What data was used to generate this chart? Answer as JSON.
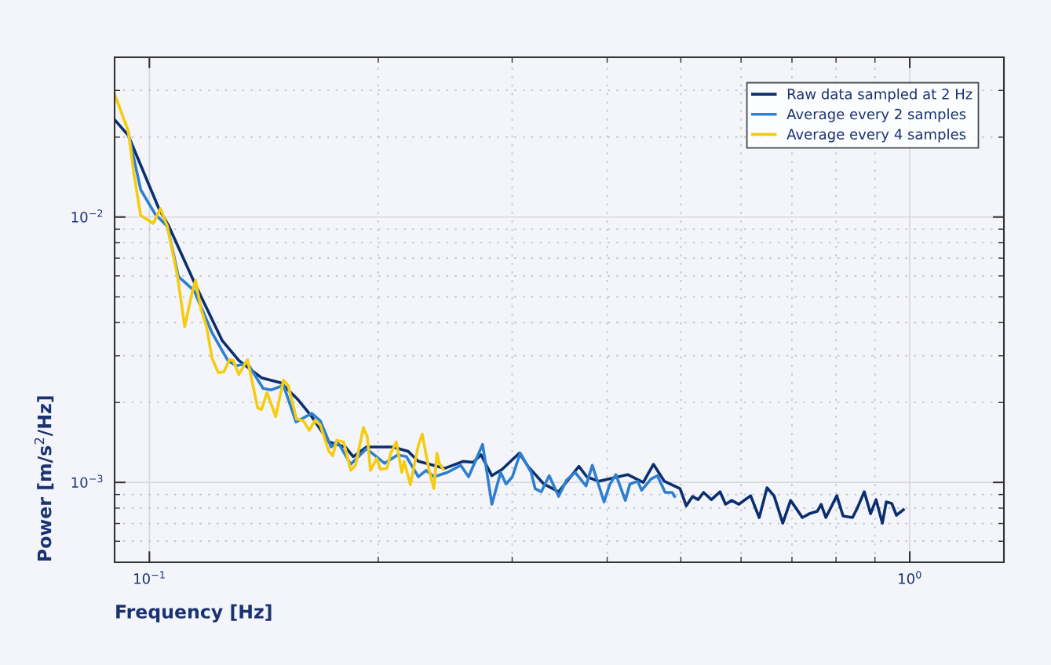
{
  "chart_data": {
    "type": "line",
    "xlabel": "Frequency [Hz]",
    "ylabel": "Power [m/s$^{2}$/Hz]",
    "log": "xy",
    "grid": true,
    "legend": "top right",
    "line_style": "solid",
    "xlim": [
      0.09,
      1.33
    ],
    "ylim": [
      0.0005,
      0.04
    ],
    "xticks": [
      {
        "value": 0.1,
        "label": "10$^{−1}$"
      },
      {
        "value": 1,
        "label": "10$^{0}$"
      }
    ],
    "yticks": [
      {
        "value": 0.001,
        "label": "10$^{−3}$"
      },
      {
        "value": 0.01,
        "label": "10$^{−2}$"
      }
    ],
    "series": [
      {
        "name": "Raw data sampled at 2 Hz",
        "color": "#0b2f6e",
        "x": [
          0.0901,
          0.0938,
          0.1029,
          0.1061,
          0.1145,
          0.1247,
          0.1311,
          0.1404,
          0.149,
          0.1566,
          0.1635,
          0.1722,
          0.181,
          0.1854,
          0.193,
          0.2087,
          0.2189,
          0.2258,
          0.2447,
          0.2585,
          0.2666,
          0.273,
          0.2821,
          0.291,
          0.3066,
          0.3147,
          0.3302,
          0.3453,
          0.3672,
          0.3761,
          0.3896,
          0.4256,
          0.4462,
          0.4602,
          0.4756,
          0.4988,
          0.5083,
          0.5181,
          0.5268,
          0.5356,
          0.5485,
          0.563,
          0.5725,
          0.5834,
          0.5961,
          0.6176,
          0.6339,
          0.6491,
          0.663,
          0.6808,
          0.6971,
          0.7088,
          0.7224,
          0.7379,
          0.7557,
          0.7647,
          0.7757,
          0.8018,
          0.8172,
          0.8409,
          0.853,
          0.8714,
          0.8882,
          0.9031,
          0.9204,
          0.9314,
          0.947,
          0.9605,
          0.981
        ],
        "values": [
          0.0232,
          0.0203,
          0.01077,
          0.00922,
          0.00569,
          0.00342,
          0.00288,
          0.00248,
          0.00237,
          0.00206,
          0.00177,
          0.00142,
          0.00136,
          0.00125,
          0.00136,
          0.00136,
          0.00131,
          0.0012,
          0.00113,
          0.0012,
          0.00119,
          0.00127,
          0.00106,
          0.00112,
          0.00129,
          0.00115,
          0.000986,
          0.000922,
          0.00115,
          0.00105,
          0.00101,
          0.00107,
          0.001,
          0.00117,
          0.00101,
          0.000947,
          0.000816,
          0.000885,
          0.000861,
          0.000916,
          0.000861,
          0.000922,
          0.000827,
          0.000855,
          0.000827,
          0.000891,
          0.000737,
          0.000954,
          0.000891,
          0.000702,
          0.000855,
          0.000799,
          0.000737,
          0.000762,
          0.000778,
          0.000827,
          0.000737,
          0.000891,
          0.000747,
          0.000737,
          0.000799,
          0.000922,
          0.000762,
          0.000861,
          0.000702,
          0.000844,
          0.000833,
          0.000752,
          0.000789
        ]
      },
      {
        "name": "Average every 2 samples",
        "color": "#2e7fcf",
        "x": [
          0.0938,
          0.0974,
          0.1017,
          0.1056,
          0.1092,
          0.1145,
          0.1209,
          0.1268,
          0.1301,
          0.1346,
          0.1411,
          0.1445,
          0.1501,
          0.1559,
          0.1635,
          0.1677,
          0.1734,
          0.1764,
          0.178,
          0.184,
          0.193,
          0.2039,
          0.2122,
          0.2178,
          0.2258,
          0.2312,
          0.2367,
          0.2465,
          0.2567,
          0.2629,
          0.2743,
          0.2821,
          0.2897,
          0.2945,
          0.3002,
          0.3074,
          0.3178,
          0.3216,
          0.3277,
          0.3356,
          0.3453,
          0.3537,
          0.363,
          0.3752,
          0.3824,
          0.3963,
          0.403,
          0.4107,
          0.4226,
          0.4285,
          0.4388,
          0.444,
          0.4568,
          0.4656,
          0.4769,
          0.4871,
          0.4906
        ],
        "values": [
          0.0208,
          0.01268,
          0.01028,
          0.00922,
          0.00597,
          0.00528,
          0.00366,
          0.00288,
          0.00275,
          0.00281,
          0.00226,
          0.00223,
          0.00232,
          0.00169,
          0.00182,
          0.00171,
          0.00136,
          0.00142,
          0.00138,
          0.00117,
          0.00134,
          0.00118,
          0.00127,
          0.00125,
          0.00105,
          0.00111,
          0.00105,
          0.00109,
          0.00116,
          0.00105,
          0.00139,
          0.000827,
          0.00109,
          0.000986,
          0.00105,
          0.00129,
          0.00109,
          0.000947,
          0.000922,
          0.00106,
          0.000885,
          0.00102,
          0.00109,
          0.00097,
          0.00116,
          0.000844,
          0.00098,
          0.00107,
          0.000855,
          0.000986,
          0.00101,
          0.000934,
          0.00103,
          0.00106,
          0.000916,
          0.000916,
          0.000885
        ]
      },
      {
        "name": "Average every 4 samples",
        "color": "#f5cc10",
        "x": [
          0.0901,
          0.0938,
          0.0954,
          0.0974,
          0.1012,
          0.1034,
          0.1056,
          0.1089,
          0.1113,
          0.1137,
          0.115,
          0.117,
          0.1189,
          0.1209,
          0.1232,
          0.1253,
          0.1274,
          0.1289,
          0.1311,
          0.1346,
          0.1388,
          0.1404,
          0.1428,
          0.1466,
          0.1501,
          0.1522,
          0.1562,
          0.1593,
          0.1623,
          0.165,
          0.1677,
          0.1722,
          0.1742,
          0.1764,
          0.178,
          0.1801,
          0.184,
          0.1867,
          0.1912,
          0.1935,
          0.1953,
          0.1991,
          0.2014,
          0.2053,
          0.2077,
          0.2112,
          0.2148,
          0.2163,
          0.2204,
          0.2258,
          0.2285,
          0.2333,
          0.2367,
          0.2389,
          0.2406,
          0.2435
        ],
        "values": [
          0.0288,
          0.0211,
          0.01462,
          0.01014,
          0.00946,
          0.01077,
          0.00922,
          0.00597,
          0.00386,
          0.00514,
          0.00577,
          0.00446,
          0.00386,
          0.00294,
          0.00259,
          0.00261,
          0.0029,
          0.00288,
          0.00255,
          0.0029,
          0.00191,
          0.00188,
          0.00218,
          0.00177,
          0.00243,
          0.00232,
          0.00173,
          0.00171,
          0.00157,
          0.00171,
          0.00165,
          0.00131,
          0.00126,
          0.00144,
          0.00143,
          0.00142,
          0.00111,
          0.00116,
          0.00161,
          0.00148,
          0.00111,
          0.00123,
          0.00112,
          0.00113,
          0.00129,
          0.00142,
          0.00109,
          0.0012,
          0.00098,
          0.00138,
          0.00152,
          0.00111,
          0.000947,
          0.00129,
          0.00118,
          0.00112
        ]
      }
    ]
  }
}
